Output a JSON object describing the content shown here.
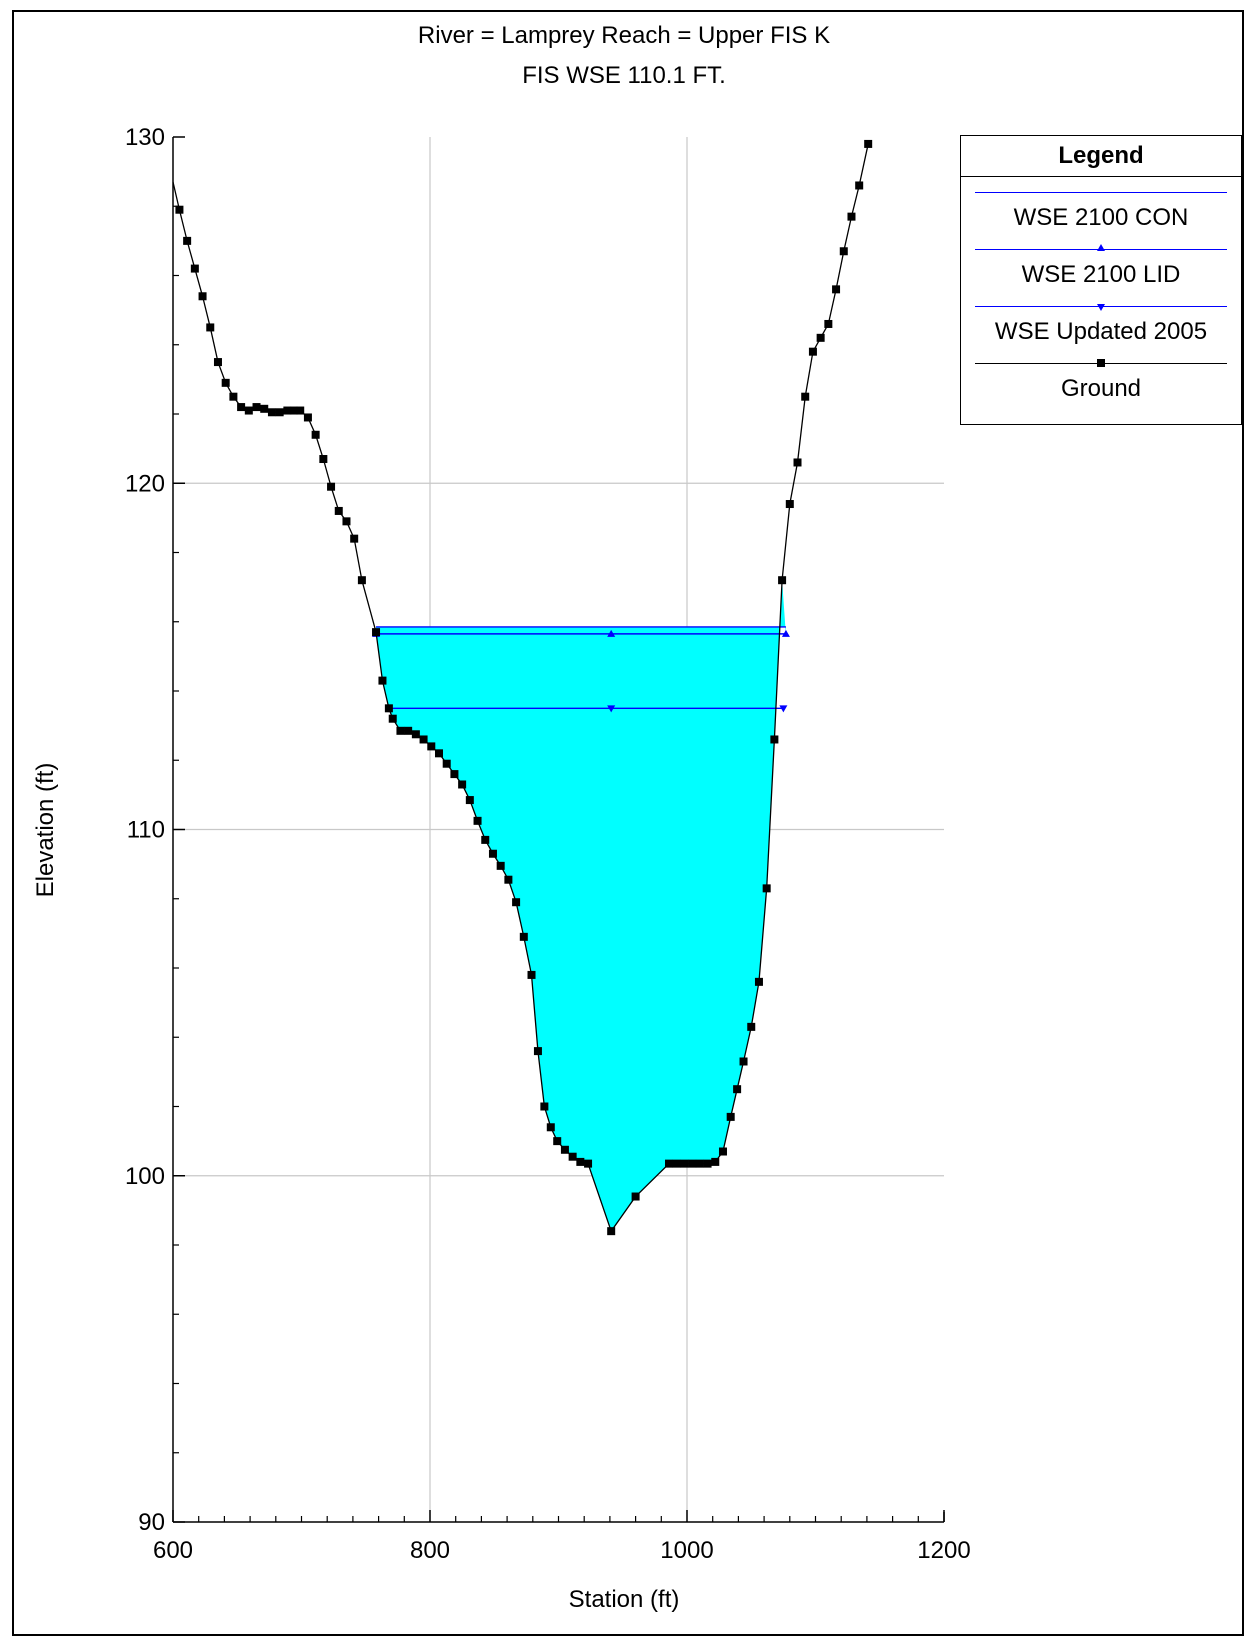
{
  "chart_data": {
    "type": "line",
    "title_line1": "River = Lamprey   Reach = Upper      FIS K",
    "title_line2": "FIS WSE 110.1 FT.",
    "xlabel": "Station (ft)",
    "ylabel": "Elevation (ft)",
    "xlim": [
      600,
      1200
    ],
    "ylim": [
      90,
      130
    ],
    "xticks": [
      "600",
      "800",
      "1000",
      "1200"
    ],
    "yticks": [
      "90",
      "100",
      "110",
      "120",
      "130"
    ],
    "grid": true,
    "legend": {
      "title": "Legend",
      "placement": "right",
      "entries": [
        {
          "label": "WSE 2100 CON",
          "color": "#0000ff",
          "marker": "none"
        },
        {
          "label": "WSE 2100 LID",
          "color": "#0000ff",
          "marker": "triangle-up"
        },
        {
          "label": "WSE Updated 2005",
          "color": "#0000ff",
          "marker": "triangle-down"
        },
        {
          "label": "Ground",
          "color": "#000000",
          "marker": "square"
        }
      ]
    },
    "water_fill_color": "#00ffff",
    "series": [
      {
        "name": "WSE 2100 CON",
        "type": "flat",
        "y": 115.85,
        "x_range": [
          758,
          1077
        ]
      },
      {
        "name": "WSE 2100 LID",
        "type": "flat",
        "y": 115.65,
        "x_range": [
          758,
          1077
        ]
      },
      {
        "name": "WSE Updated 2005",
        "type": "flat",
        "y": 113.5,
        "x_range": [
          768,
          1075
        ]
      },
      {
        "name": "Ground",
        "points": [
          [
            600,
            128.7
          ],
          [
            605,
            127.9
          ],
          [
            611,
            127.0
          ],
          [
            617,
            126.2
          ],
          [
            623,
            125.4
          ],
          [
            629,
            124.5
          ],
          [
            635,
            123.5
          ],
          [
            641,
            122.9
          ],
          [
            647,
            122.5
          ],
          [
            653,
            122.2
          ],
          [
            659,
            122.1
          ],
          [
            665,
            122.2
          ],
          [
            671,
            122.15
          ],
          [
            677,
            122.05
          ],
          [
            683,
            122.05
          ],
          [
            689,
            122.1
          ],
          [
            694,
            122.1
          ],
          [
            699,
            122.1
          ],
          [
            705,
            121.9
          ],
          [
            711,
            121.4
          ],
          [
            717,
            120.7
          ],
          [
            723,
            119.9
          ],
          [
            729,
            119.2
          ],
          [
            735,
            118.9
          ],
          [
            741,
            118.4
          ],
          [
            747,
            117.2
          ],
          [
            758,
            115.7
          ],
          [
            763,
            114.3
          ],
          [
            768,
            113.5
          ],
          [
            771,
            113.2
          ],
          [
            777,
            112.85
          ],
          [
            783,
            112.85
          ],
          [
            789,
            112.75
          ],
          [
            795,
            112.6
          ],
          [
            801,
            112.4
          ],
          [
            807,
            112.2
          ],
          [
            813,
            111.9
          ],
          [
            819,
            111.6
          ],
          [
            825,
            111.3
          ],
          [
            831,
            110.85
          ],
          [
            837,
            110.25
          ],
          [
            843,
            109.7
          ],
          [
            849,
            109.3
          ],
          [
            855,
            108.95
          ],
          [
            861,
            108.55
          ],
          [
            867,
            107.9
          ],
          [
            873,
            106.9
          ],
          [
            879,
            105.8
          ],
          [
            884,
            103.6
          ],
          [
            889,
            102.0
          ],
          [
            894,
            101.4
          ],
          [
            899,
            101.0
          ],
          [
            905,
            100.75
          ],
          [
            911,
            100.55
          ],
          [
            917,
            100.4
          ],
          [
            923,
            100.35
          ],
          [
            941,
            98.4
          ],
          [
            960,
            99.4
          ],
          [
            986,
            100.35
          ],
          [
            992,
            100.35
          ],
          [
            998,
            100.35
          ],
          [
            1004,
            100.35
          ],
          [
            1010,
            100.35
          ],
          [
            1016,
            100.35
          ],
          [
            1022,
            100.4
          ],
          [
            1028,
            100.7
          ],
          [
            1034,
            101.7
          ],
          [
            1039,
            102.5
          ],
          [
            1044,
            103.3
          ],
          [
            1050,
            104.3
          ],
          [
            1056,
            105.6
          ],
          [
            1062,
            108.3
          ],
          [
            1068,
            112.6
          ],
          [
            1074,
            117.2
          ],
          [
            1080,
            119.4
          ],
          [
            1086,
            120.6
          ],
          [
            1092,
            122.5
          ],
          [
            1098,
            123.8
          ],
          [
            1104,
            124.2
          ],
          [
            1110,
            124.6
          ],
          [
            1116,
            125.6
          ],
          [
            1122,
            126.7
          ],
          [
            1128,
            127.7
          ],
          [
            1134,
            128.6
          ],
          [
            1141,
            129.8
          ]
        ]
      }
    ]
  }
}
